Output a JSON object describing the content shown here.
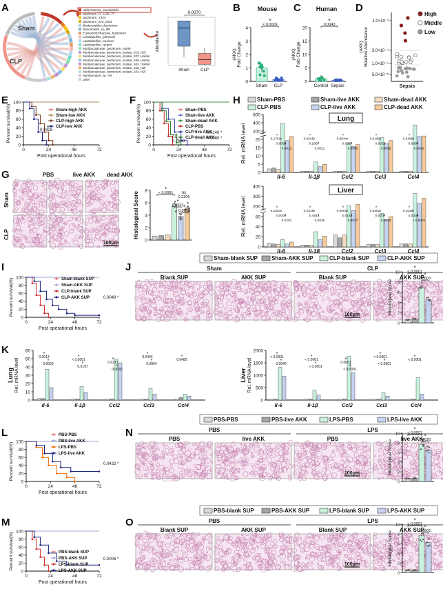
{
  "panels": {
    "A": {
      "letter": "A",
      "sham_label": "Sham",
      "clp_label": "CLP",
      "taxa": [
        "Akkermansia_muciniphila",
        "bacterium_D_1128_??",
        "bacterium_Y424",
        "bacterium_J10_2018",
        "Bacteroidales_bacterium",
        "Duncaniella_sp_B8",
        "Erysipelotrichaceae_bacterium",
        "Lactobacillus_johnsonii",
        "Lactobacillus_murinus",
        "Lactobacillus_reuteri",
        "Muribaculaceae_bacterium_AM35",
        "Muribaculaceae_bacterium_Isolate_013_NCI",
        "Muribaculaceae_bacterium_Isolate_037_Harlan",
        "Muribaculaceae_bacterium_Isolate_039_Harlan",
        "Muribaculaceae_bacterium_Isolate_043_Harlan",
        "Muribaculaceae_bacterium_Isolate_102_HZI",
        "Muribaculaceae_bacterium_Isolate_104_HZI",
        "Muribaculum_sp_H5",
        "other"
      ],
      "taxa_colors": [
        "#c0392b",
        "#e67e22",
        "#f1c40f",
        "#d4ac0d",
        "#a9cce3",
        "#7fb3d5",
        "#e59866",
        "#f5b7b1",
        "#aed6f1",
        "#76d7c4",
        "#82e0aa",
        "#c39bd3",
        "#f7dc6f",
        "#85c1e9",
        "#bb8fce",
        "#f0b27a",
        "#a3e4d7",
        "#d7bde2",
        "#cccccc"
      ],
      "inset": {
        "pvalue": "0.0070",
        "ylabel": "Abundance",
        "categories": [
          "Sham",
          "CLP"
        ],
        "yticks": [
          "0",
          "0.005",
          "0.010",
          "0.015",
          "0.020"
        ],
        "ylim": [
          0,
          0.02
        ],
        "q1": [
          0.008,
          0.0005
        ],
        "median": [
          0.0155,
          0.0024
        ],
        "q3": [
          0.0185,
          0.005
        ],
        "whisker": [
          [
            0.0035,
            0.0185
          ],
          [
            0.0001,
            0.0072
          ]
        ]
      }
    },
    "B": {
      "letter": "B",
      "title": "Mouse",
      "ylabel": "(AKK)\nFold Change",
      "sig": "*",
      "pval": "< 0.0001",
      "categories": [
        "Sham",
        "CLP"
      ],
      "yticks": [
        "0",
        "1",
        "2",
        "3",
        "4"
      ],
      "ylim": [
        0,
        4
      ],
      "means": [
        1.0,
        0.15
      ],
      "colors": [
        "#2ab07a",
        "#3b5cbf"
      ]
    },
    "C": {
      "letter": "C",
      "title": "Human",
      "ylabel": "(AKK)\nFold Change",
      "sig": "*",
      "pval": "0.0043",
      "categories": [
        "Control",
        "Sepsis"
      ],
      "yticks": [
        "0",
        "5",
        "10",
        "15",
        "20"
      ],
      "ylim": [
        0,
        20
      ],
      "means": [
        1.0,
        0.35
      ],
      "colors": [
        "#2ab07a",
        "#3b5cbf"
      ]
    },
    "D": {
      "letter": "D",
      "ylabel": "(AKK)\nRelative Abundance",
      "category": "Sepsis",
      "yticks": [
        "1.0×10⁻⁴",
        "5.0×10⁻⁵",
        "1.0×10⁻⁵",
        "3.0×10⁻⁴",
        "1.0×10⁻³"
      ],
      "legend": [
        "High",
        "Middle",
        "Low"
      ],
      "legend_colors": [
        "#8b1a1a",
        "#ffffff",
        "#9a9a9a"
      ]
    },
    "E": {
      "letter": "E",
      "ylabel": "Percent survival(%)",
      "xlabel": "Post operational hours",
      "xticks": [
        "0",
        "24",
        "48",
        "72"
      ],
      "yticks": [
        "0",
        "20",
        "40",
        "60",
        "80",
        "100"
      ],
      "pval": "0.0428",
      "sig": "*",
      "legend": [
        "Sham-high AKK",
        "Sham-low AKK",
        "CLP-high AKK",
        "CLP-low AKK"
      ]
    },
    "F": {
      "letter": "F",
      "ylabel": "Percent survival(%)",
      "xlabel": "Post operational hours",
      "xticks": [
        "0",
        "24",
        "48",
        "72"
      ],
      "yticks": [
        "0",
        "20",
        "40",
        "60",
        "80",
        "100"
      ],
      "legend": [
        "Sham-PBS",
        "Sham-live AKK",
        "Sham-dead AKK",
        "CLP-PBS",
        "CLP-live AKK",
        "CLP-dead AKK"
      ],
      "ns": "ns",
      "p1": "0.7580",
      "p2": "0.0140",
      "p3": "0.0080",
      "sig": "*"
    },
    "G": {
      "letter": "G",
      "cols": [
        "PBS",
        "live AKK",
        "dead AKK"
      ],
      "rows": [
        "Sham",
        "CLP"
      ],
      "scale": "100μm",
      "ylabel": "Histological Score",
      "yticks": [
        "0",
        "2",
        "4",
        "6",
        "8"
      ],
      "p1": "< 0.0001",
      "p2": "0.0032",
      "p3": "0.0004",
      "ns": "ns",
      "p4": "0.2206",
      "means": [
        0.6,
        0.7,
        0.8,
        5.4,
        3.8,
        5.2
      ]
    },
    "H": {
      "letter": "H",
      "legend": [
        "Sham-PBS",
        "Sham-live AKK",
        "Sham-dead AKK",
        "CLP-PBS",
        "CLP-live AKK",
        "CLP-dead AKK"
      ],
      "organs": [
        "Lung",
        "Liver"
      ],
      "ylabel": "Rel. mRNA level",
      "genes": [
        "Il-6",
        "Il-1β",
        "Ccl2",
        "Ccl3",
        "Ccl4"
      ],
      "lung_yticks": [
        "0",
        "5",
        "10",
        "15",
        "20",
        "200",
        "400",
        "600"
      ],
      "liver_yticks": [
        "0",
        "20",
        "40",
        "60",
        "200",
        "300",
        "400"
      ],
      "lung_pvals": [
        "0.1761",
        "0.0003",
        "0.0012",
        "0.0245",
        "0.2667",
        "0.0021",
        "0.0044",
        "0.0387",
        "0.0005",
        "0.0192",
        "0.0021",
        "0.0065",
        "0.3398",
        "0.0034",
        "0.0002",
        "0.8134",
        "0.0033",
        "0.0058"
      ],
      "liver_pvals": [
        "0.1534",
        "0.0008",
        "0.0291",
        "0.0416",
        "0.4543",
        "0.0036",
        "0.0001",
        "0.0143",
        "0.8577",
        "0.0302",
        "0.0007",
        "0.0045",
        "0.1026",
        "0.0039",
        "< 0.0001",
        "0.0051",
        "0.7475",
        "0.0019"
      ]
    },
    "I": {
      "letter": "I",
      "ylabel": "Percent survival(%)",
      "xlabel": "Post operational hours",
      "xticks": [
        "0",
        "24",
        "48",
        "72"
      ],
      "yticks": [
        "0",
        "20",
        "40",
        "60",
        "80",
        "100"
      ],
      "legend": [
        "Sham-blank SUP",
        "Sham-AKK SUP",
        "CLP-blank SUP",
        "CLP-AKK SUP"
      ],
      "pval": "0.0048",
      "sig": "*"
    },
    "J": {
      "letter": "J",
      "legend": [
        "Sham-blank SUP",
        "Sham-AKK SUP",
        "CLP-blank SUP",
        "CLP-AKK SUP"
      ],
      "groups": [
        "Sham",
        "CLP"
      ],
      "cols": [
        "Blank SUP",
        "AKK SUP",
        "Blank SUP",
        "AKK SUP"
      ],
      "scale": "100μm",
      "ylabel": "Histological Score",
      "yticks": [
        "0",
        "2",
        "4",
        "6",
        "8",
        "10"
      ],
      "p1": "< 0.0001",
      "p2": "0.0003",
      "means": [
        0.6,
        0.8,
        6.9,
        4.5
      ]
    },
    "K": {
      "letter": "K",
      "ylabel_lung": "Lung",
      "ylabel_liver": "Liver",
      "ylabel": "Rel. mRNA level",
      "genes": [
        "Il-6",
        "Il-1β",
        "Ccl2",
        "Ccl3",
        "Ccl4"
      ],
      "lung_yticks": [
        "0",
        "10",
        "20",
        "30",
        "40",
        "50",
        "60"
      ],
      "liver_yticks": [
        "0",
        "500",
        "1000",
        "1500",
        "2000"
      ],
      "lung_pvals": [
        "0.0013",
        "0.0003",
        "< 0.0001",
        "0.0197",
        "0.0317",
        "0.0030",
        "0.0444",
        "0.0064",
        "0.0480"
      ],
      "liver_pvals": [
        "< 0.0001",
        "0.0046",
        "< 0.0001",
        "< 0.0001",
        "0.0001",
        "< 0.0001",
        "< 0.0001",
        "< 0.0001",
        "< 0.0001"
      ]
    },
    "L": {
      "letter": "L",
      "ylabel": "Percent survival(%)",
      "xlabel": "Post operational hours",
      "xticks": [
        "0",
        "24",
        "48",
        "72"
      ],
      "yticks": [
        "0",
        "20",
        "40",
        "60",
        "80",
        "100"
      ],
      "legend": [
        "PBS-PBS",
        "PBS-live AKK",
        "LPS-PBS",
        "LPS-live AKK"
      ],
      "pval": "0.0432",
      "sig": "*"
    },
    "M": {
      "letter": "M",
      "ylabel": "Percent survival(%)",
      "xlabel": "Post operational hours",
      "xticks": [
        "0",
        "24",
        "48",
        "72"
      ],
      "yticks": [
        "0",
        "20",
        "40",
        "60",
        "80",
        "100"
      ],
      "legend": [
        "PBS-blank SUP",
        "PBS-AKK SUP",
        "LPS-blank SUP",
        "LPS-AKK SUP"
      ],
      "pval": "0.0006",
      "sig": "*"
    },
    "N": {
      "letter": "N",
      "legend": [
        "PBS-PBS",
        "PBS-live AKK",
        "LPS-PBS",
        "LPS-live AKK"
      ],
      "groups": [
        "PBS",
        "LPS"
      ],
      "cols": [
        "PBS",
        "live AKK",
        "PBS",
        "live AKK"
      ],
      "scale": "100μm",
      "ylabel": "Histological Score",
      "yticks": [
        "0",
        "2",
        "4",
        "6",
        "8",
        "10"
      ],
      "p1": "< 0.0001",
      "p2": "0.0020",
      "means": [
        0.6,
        0.6,
        7.7,
        6.5
      ]
    },
    "O": {
      "letter": "O",
      "legend": [
        "PBS-blank SUP",
        "PBS-AKK SUP",
        "LPS-blank SUP",
        "LPS-AKK SUP"
      ],
      "groups": [
        "PBS",
        "LPS"
      ],
      "cols": [
        "Blank SUP",
        "AKK SUP",
        "Blank SUP",
        "AKK SUP"
      ],
      "scale": "100μm",
      "ylabel": "Histological Score",
      "yticks": [
        "0",
        "2",
        "4",
        "6",
        "8",
        "10"
      ],
      "p1": "< 0.0001",
      "p2": "0.0001",
      "means": [
        0.5,
        0.5,
        7.6,
        6.2
      ]
    }
  },
  "colors": {
    "sham_gray": "#d9d9d9",
    "sham_live": "#a6a6a6",
    "sham_dead": "#f3dcc0",
    "clp_pbs": "#c9f2de",
    "clp_live": "#c5d3f0",
    "clp_dead": "#f5c99a",
    "green": "#2ab07a",
    "blue": "#3b5cbf",
    "red": "#d22",
    "tissue": "#e9c6dd",
    "tissue_dark": "#c98ab5"
  }
}
